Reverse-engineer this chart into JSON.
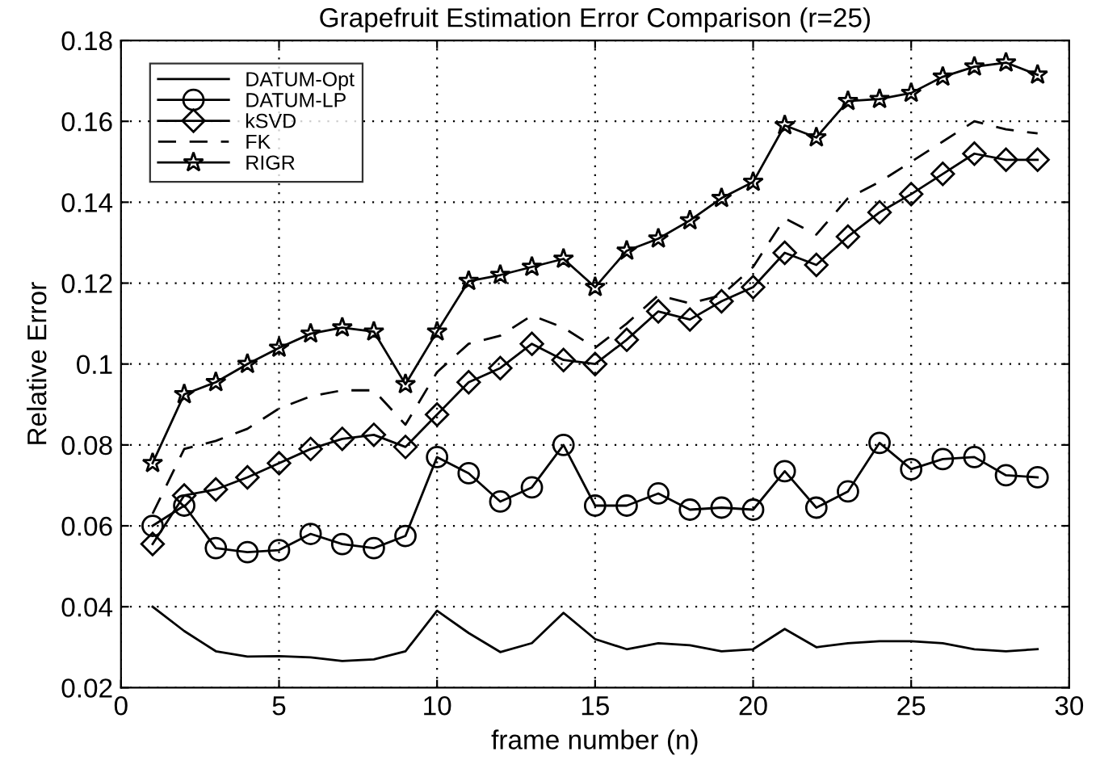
{
  "chart_data": {
    "type": "line",
    "title": "Grapefruit Estimation Error Comparison (r=25)",
    "xlabel": "frame number (n)",
    "ylabel": "Relative Error",
    "x": [
      1,
      2,
      3,
      4,
      5,
      6,
      7,
      8,
      9,
      10,
      11,
      12,
      13,
      14,
      15,
      16,
      17,
      18,
      19,
      20,
      21,
      22,
      23,
      24,
      25,
      26,
      27,
      28,
      29
    ],
    "xlim": [
      0,
      30
    ],
    "xticks": [
      0,
      5,
      10,
      15,
      20,
      25,
      30
    ],
    "ylim": [
      0.02,
      0.18
    ],
    "yticks": [
      0.02,
      0.04,
      0.06,
      0.08,
      0.1,
      0.12,
      0.14,
      0.16,
      0.18
    ],
    "grid": true,
    "legend": "top left",
    "series": [
      {
        "name": "DATUM-Opt",
        "color": "#000000",
        "marker": "none",
        "line_style": "solid",
        "values": [
          0.04,
          0.034,
          0.029,
          0.0277,
          0.0278,
          0.0275,
          0.0266,
          0.027,
          0.029,
          0.039,
          0.0335,
          0.0288,
          0.031,
          0.0385,
          0.032,
          0.0295,
          0.031,
          0.0305,
          0.029,
          0.0295,
          0.0345,
          0.03,
          0.031,
          0.0315,
          0.0315,
          0.031,
          0.0295,
          0.029,
          0.0295
        ]
      },
      {
        "name": "DATUM-LP",
        "color": "#000000",
        "marker": "circle",
        "line_style": "solid",
        "values": [
          0.06,
          0.065,
          0.0545,
          0.0535,
          0.054,
          0.058,
          0.0555,
          0.0545,
          0.0575,
          0.077,
          0.073,
          0.066,
          0.0695,
          0.08,
          0.065,
          0.065,
          0.068,
          0.064,
          0.0645,
          0.064,
          0.0735,
          0.0645,
          0.0685,
          0.0805,
          0.074,
          0.0765,
          0.077,
          0.0725,
          0.072
        ]
      },
      {
        "name": "kSVD",
        "color": "#000000",
        "marker": "diamond",
        "line_style": "solid",
        "values": [
          0.0555,
          0.0675,
          0.069,
          0.072,
          0.0755,
          0.079,
          0.0815,
          0.0825,
          0.0795,
          0.0875,
          0.0955,
          0.099,
          0.105,
          0.101,
          0.1,
          0.106,
          0.113,
          0.111,
          0.1155,
          0.119,
          0.1275,
          0.1245,
          0.1315,
          0.1375,
          0.142,
          0.147,
          0.152,
          0.1505,
          0.1505
        ]
      },
      {
        "name": "FK",
        "color": "#000000",
        "marker": "none",
        "line_style": "dashed",
        "values": [
          0.063,
          0.079,
          0.081,
          0.084,
          0.089,
          0.092,
          0.0935,
          0.0935,
          0.085,
          0.098,
          0.105,
          0.107,
          0.112,
          0.109,
          0.104,
          0.11,
          0.117,
          0.115,
          0.117,
          0.124,
          0.136,
          0.132,
          0.141,
          0.145,
          0.15,
          0.155,
          0.16,
          0.158,
          0.157
        ]
      },
      {
        "name": "RIGR",
        "color": "#000000",
        "marker": "star",
        "line_style": "solid",
        "values": [
          0.0755,
          0.0925,
          0.0955,
          0.1,
          0.104,
          0.1075,
          0.109,
          0.108,
          0.095,
          0.108,
          0.1205,
          0.122,
          0.124,
          0.126,
          0.119,
          0.128,
          0.131,
          0.1355,
          0.141,
          0.145,
          0.159,
          0.156,
          0.165,
          0.1655,
          0.167,
          0.171,
          0.1735,
          0.1745,
          0.1715
        ]
      }
    ]
  }
}
